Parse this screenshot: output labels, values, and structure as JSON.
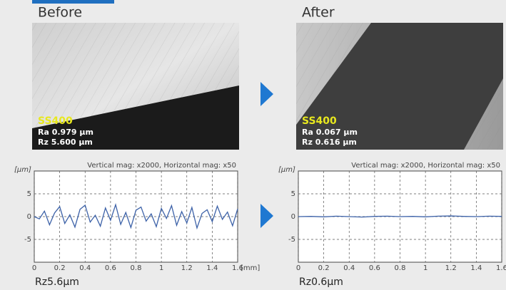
{
  "panels": [
    {
      "heading": "Before",
      "photo_labels": [
        "SS400",
        "Ra 0.979 µm",
        "Rz 5.600 µm"
      ],
      "caption": "Rz5.6μm"
    },
    {
      "heading": "After",
      "photo_labels": [
        "SS400",
        "Ra 0.067 µm",
        "Rz 0.616 µm"
      ],
      "caption": "Rz0.6μm"
    }
  ],
  "chart_data": [
    {
      "type": "line",
      "title": "Vertical mag: x2000, Horizontal mag: x50",
      "y_label": "[μm]",
      "x_label": "[mm]",
      "xlim": [
        0,
        1.6
      ],
      "xticks": [
        0,
        0.2,
        0.4,
        0.6,
        0.8,
        1,
        1.2,
        1.4,
        1.6
      ],
      "ylim": [
        -10,
        10
      ],
      "yticks": [
        -5,
        0,
        5
      ],
      "grid": true,
      "x": [
        0,
        0.04,
        0.08,
        0.12,
        0.16,
        0.2,
        0.24,
        0.28,
        0.32,
        0.36,
        0.4,
        0.44,
        0.48,
        0.52,
        0.56,
        0.6,
        0.64,
        0.68,
        0.72,
        0.76,
        0.8,
        0.84,
        0.88,
        0.92,
        0.96,
        1,
        1.04,
        1.08,
        1.12,
        1.16,
        1.2,
        1.24,
        1.28,
        1.32,
        1.36,
        1.4,
        1.44,
        1.48,
        1.52,
        1.56,
        1.6
      ],
      "series": [
        {
          "color": "#3d62a8",
          "values": [
            0,
            -0.5,
            1.2,
            -1.8,
            0.8,
            2.2,
            -1.5,
            0.4,
            -2.3,
            1.6,
            2.5,
            -1.2,
            0.3,
            -2.1,
            1.9,
            -0.8,
            2.6,
            -1.7,
            0.9,
            -2.4,
            1.4,
            2.1,
            -1.0,
            0.6,
            -2.2,
            1.8,
            -0.4,
            2.4,
            -1.9,
            1.1,
            -1.4,
            2.0,
            -2.5,
            0.7,
            1.5,
            -1.1,
            2.3,
            -0.6,
            1.0,
            -2.0,
            1.7
          ]
        }
      ]
    },
    {
      "type": "line",
      "title": "Vertical mag: x2000, Horizontal mag: x50",
      "y_label": "[μm]",
      "xlim": [
        0,
        1.6
      ],
      "xticks": [
        0,
        0.2,
        0.4,
        0.6,
        0.8,
        1,
        1.2,
        1.4,
        1.6
      ],
      "ylim": [
        -10,
        10
      ],
      "yticks": [
        -5,
        0,
        5
      ],
      "grid": true,
      "x": [
        0,
        0.1,
        0.2,
        0.3,
        0.4,
        0.5,
        0.6,
        0.7,
        0.8,
        0.9,
        1,
        1.1,
        1.2,
        1.3,
        1.4,
        1.5,
        1.6
      ],
      "series": [
        {
          "color": "#3d62a8",
          "values": [
            0,
            0.05,
            -0.05,
            0.1,
            0,
            -0.1,
            0.05,
            0.1,
            0,
            0.05,
            -0.05,
            0.1,
            0.15,
            0.05,
            0,
            0.1,
            0.05
          ]
        }
      ]
    }
  ]
}
